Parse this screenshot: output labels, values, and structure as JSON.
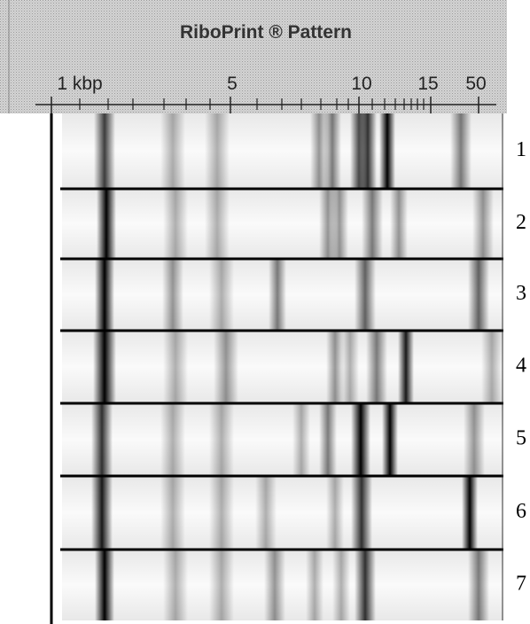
{
  "header": {
    "title": "RiboPrint ® Pattern",
    "scale_labels": [
      "1 kbp",
      "5",
      "10",
      "15",
      "50"
    ]
  },
  "lanes": [
    "1",
    "2",
    "3",
    "4",
    "5",
    "6",
    "7"
  ]
}
